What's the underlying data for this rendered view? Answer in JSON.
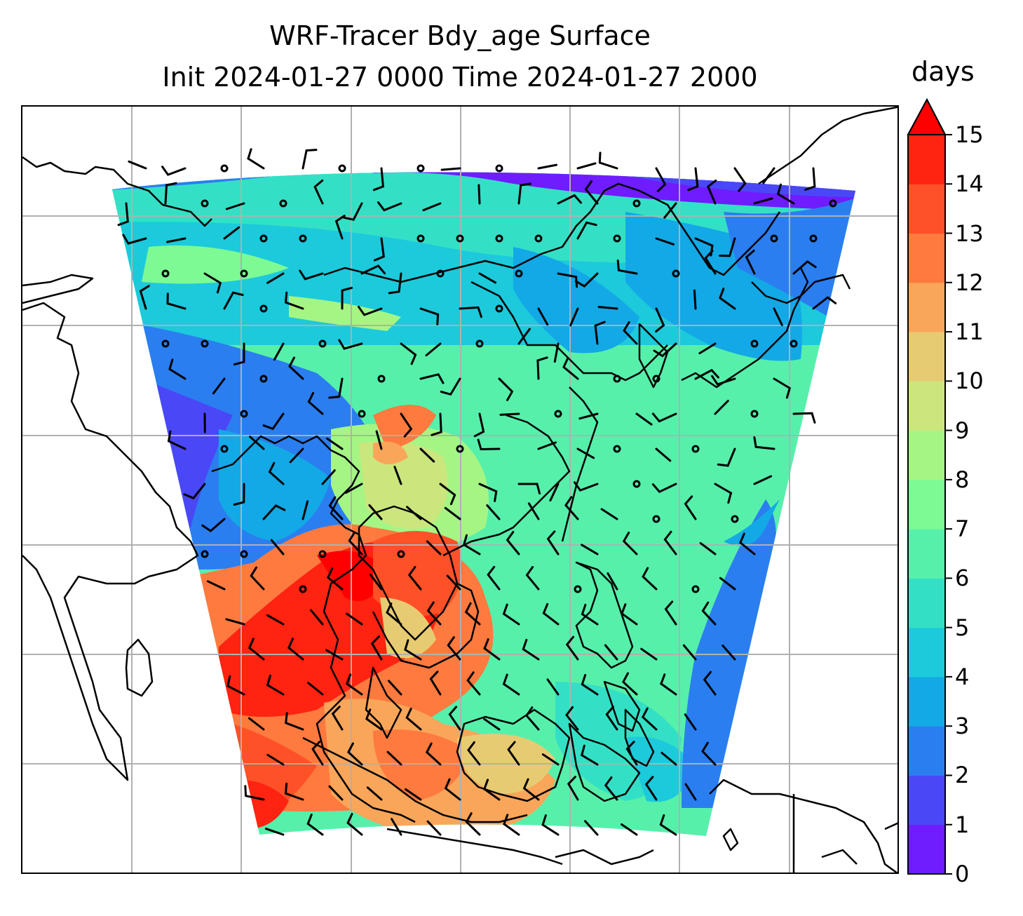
{
  "title": {
    "line1": "WRF-Tracer Bdy_age Surface",
    "line2": "Init 2024-01-27 0000 Time 2024-01-27 2000"
  },
  "colorbar": {
    "units": "days",
    "min": 0,
    "max": 15,
    "extend": "max",
    "tick_labels": [
      "0",
      "1",
      "2",
      "3",
      "4",
      "5",
      "6",
      "7",
      "8",
      "9",
      "10",
      "11",
      "12",
      "13",
      "14",
      "15"
    ],
    "colors": [
      "#6f1cff",
      "#4a47f7",
      "#2b7ef0",
      "#13a9e6",
      "#1ccadb",
      "#34e0c5",
      "#56f0ab",
      "#7dfa94",
      "#a5f585",
      "#cbe67d",
      "#e7cb72",
      "#f9a65a",
      "#ff7a3f",
      "#ff5128",
      "#ff2311"
    ],
    "over_color": "#ff0000"
  },
  "map": {
    "gridlines": true,
    "coastlines": true,
    "wind_barbs": true,
    "field": "Bdy_age",
    "level": "Surface"
  }
}
